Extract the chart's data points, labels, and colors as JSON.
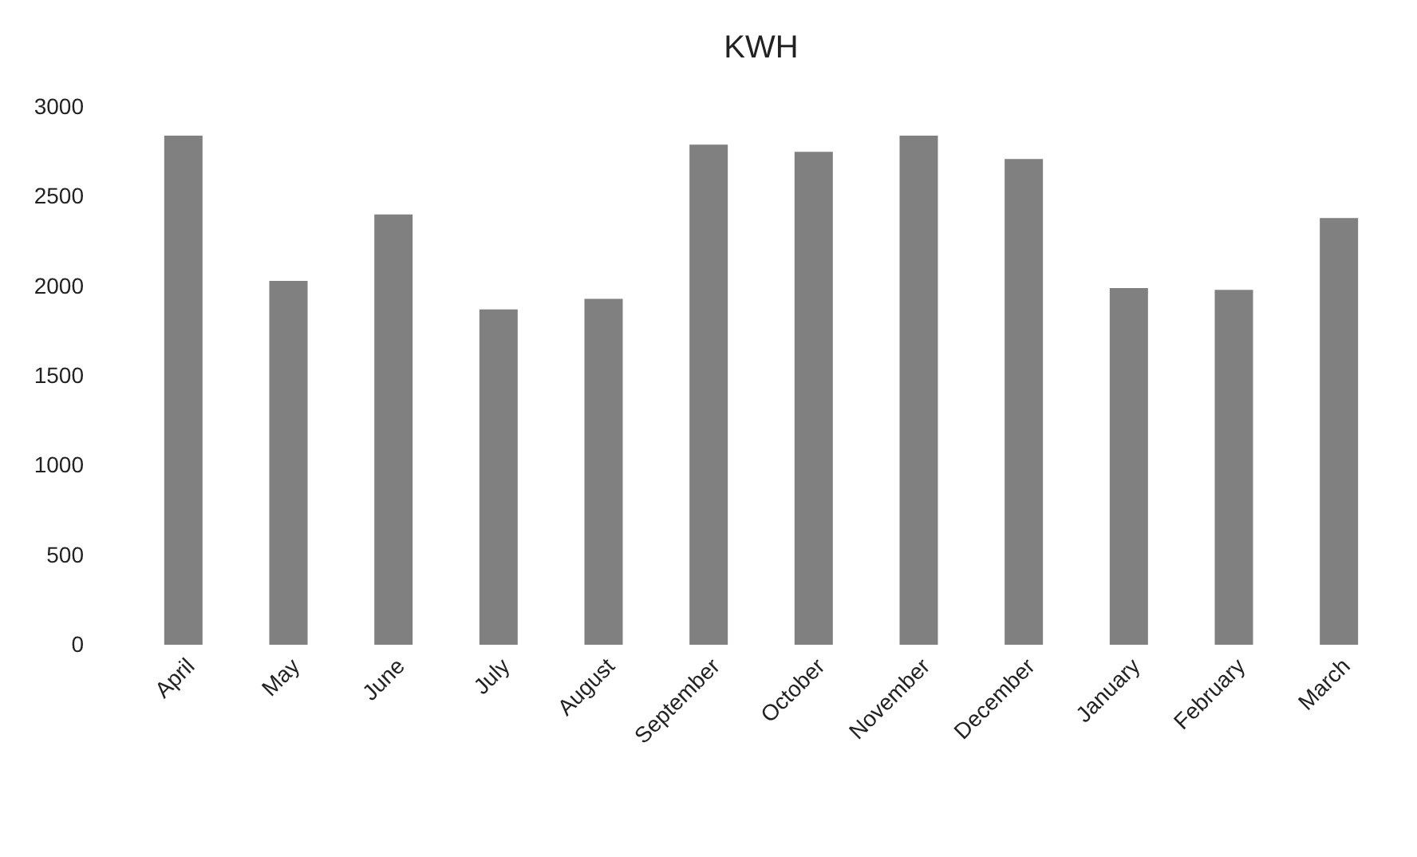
{
  "chart_data": {
    "type": "bar",
    "title": "KWH",
    "categories": [
      "April",
      "May",
      "June",
      "July",
      "August",
      "September",
      "October",
      "November",
      "December",
      "January",
      "February",
      "March"
    ],
    "values": [
      2840,
      2030,
      2400,
      1870,
      1930,
      2790,
      2750,
      2840,
      2710,
      1990,
      1980,
      2380
    ],
    "color": "#808080",
    "ylim": [
      0,
      3000
    ],
    "yticks": [
      0,
      500,
      1000,
      1500,
      2000,
      2500,
      3000
    ],
    "grid": false
  }
}
